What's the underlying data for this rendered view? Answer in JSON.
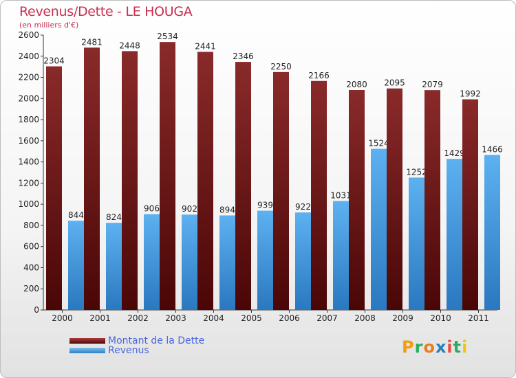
{
  "title": "Revenus/Dette - LE HOUGA",
  "subtitle": "(en milliers d'€)",
  "logo_text": "Proxiti",
  "chart_data": {
    "type": "bar",
    "categories": [
      "2000",
      "2001",
      "2002",
      "2003",
      "2004",
      "2005",
      "2006",
      "2007",
      "2008",
      "2009",
      "2010",
      "2011"
    ],
    "series": [
      {
        "name": "Montant de la Dette",
        "values": [
          2304,
          2481,
          2448,
          2534,
          2441,
          2346,
          2250,
          2166,
          2080,
          2095,
          2079,
          1992
        ],
        "color": "#7a1d1d"
      },
      {
        "name": "Revenus",
        "values": [
          844,
          824,
          906,
          902,
          894,
          939,
          922,
          1031,
          1524,
          1252,
          1429,
          1466
        ],
        "color": "#4aa3e8"
      }
    ],
    "ylim": [
      0,
      2600
    ],
    "yticks": [
      0,
      200,
      400,
      600,
      800,
      1000,
      1200,
      1400,
      1600,
      1800,
      2000,
      2200,
      2400,
      2600
    ],
    "grid": false,
    "legend": "bottom-left"
  },
  "colors": {
    "title": "#c8304f",
    "legend_text": "#4a67e0",
    "axis": "#333333"
  }
}
